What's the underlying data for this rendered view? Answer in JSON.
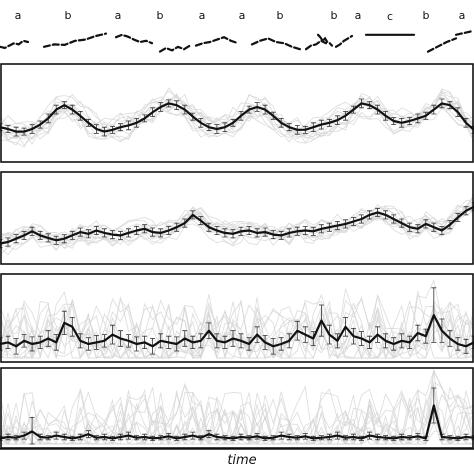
{
  "chart_data": [
    {
      "panel": "reference",
      "type": "line",
      "segment_labels": [
        "a",
        "b",
        "a",
        "b",
        "a",
        "a",
        "b",
        "b",
        "a",
        "c",
        "b",
        "a"
      ],
      "segments": [
        {
          "label": "a",
          "values": [
            0.3,
            0.25,
            0.35,
            0.45,
            0.4,
            0.55,
            0.5
          ]
        },
        {
          "label": "b",
          "values": [
            0.3,
            0.4,
            0.38,
            0.55,
            0.6,
            0.75,
            0.85
          ]
        },
        {
          "label": "a",
          "values": [
            0.7,
            0.8,
            0.72,
            0.6,
            0.5,
            0.55,
            0.45
          ]
        },
        {
          "label": "b",
          "values": [
            0.1,
            0.25,
            0.15,
            0.3,
            0.2,
            0.35
          ]
        },
        {
          "label": "a",
          "values": [
            0.35,
            0.45,
            0.5,
            0.6,
            0.7,
            0.55,
            0.45
          ]
        },
        {
          "label": "a",
          "values": [
            0.4,
            0.55,
            0.65,
            0.5,
            0.45,
            0.3,
            0.2
          ]
        },
        {
          "label": "b",
          "values": [
            0.2,
            0.35,
            0.4,
            0.55,
            0.45
          ]
        },
        {
          "label": "b",
          "values": [
            0.8,
            0.7,
            0.55,
            0.65,
            0.5,
            0.45,
            0.35
          ]
        },
        {
          "label": "a",
          "values": [
            0.3,
            0.4,
            0.55,
            0.65,
            0.75
          ]
        },
        {
          "label": "c",
          "values": [
            0.8,
            0.8
          ]
        },
        {
          "label": "b",
          "values": [
            0.1,
            0.3,
            0.5,
            0.65
          ]
        },
        {
          "label": "a",
          "values": [
            0.8,
            0.85,
            0.9,
            0.95
          ]
        }
      ]
    },
    {
      "panel": "series-1",
      "type": "line",
      "n": 60,
      "ylim": [
        0,
        1
      ],
      "mean": [
        0.35,
        0.33,
        0.3,
        0.3,
        0.33,
        0.38,
        0.45,
        0.55,
        0.6,
        0.55,
        0.48,
        0.4,
        0.33,
        0.3,
        0.32,
        0.35,
        0.37,
        0.4,
        0.45,
        0.52,
        0.58,
        0.62,
        0.6,
        0.55,
        0.47,
        0.4,
        0.35,
        0.33,
        0.35,
        0.4,
        0.48,
        0.55,
        0.58,
        0.55,
        0.48,
        0.4,
        0.35,
        0.32,
        0.32,
        0.35,
        0.38,
        0.4,
        0.43,
        0.48,
        0.55,
        0.62,
        0.6,
        0.55,
        0.48,
        0.42,
        0.4,
        0.42,
        0.45,
        0.48,
        0.55,
        0.62,
        0.6,
        0.52,
        0.4,
        0.32
      ],
      "err": [
        0.04,
        0.04,
        0.05,
        0.04,
        0.05,
        0.04,
        0.05,
        0.05,
        0.04,
        0.05,
        0.05,
        0.04,
        0.05,
        0.05,
        0.04,
        0.04,
        0.05,
        0.05,
        0.04,
        0.05,
        0.05,
        0.04,
        0.05,
        0.05,
        0.04,
        0.05,
        0.04,
        0.05,
        0.05,
        0.04,
        0.05,
        0.04,
        0.05,
        0.05,
        0.04,
        0.05,
        0.04,
        0.05,
        0.04,
        0.05,
        0.05,
        0.04,
        0.05,
        0.05,
        0.04,
        0.05,
        0.04,
        0.05,
        0.05,
        0.04,
        0.05,
        0.04,
        0.05,
        0.04,
        0.05,
        0.05,
        0.04,
        0.05,
        0.05,
        0.04
      ]
    },
    {
      "panel": "series-2",
      "type": "line",
      "n": 60,
      "ylim": [
        0,
        1
      ],
      "mean": [
        0.2,
        0.22,
        0.26,
        0.3,
        0.35,
        0.3,
        0.27,
        0.24,
        0.26,
        0.3,
        0.34,
        0.32,
        0.36,
        0.33,
        0.31,
        0.3,
        0.33,
        0.36,
        0.38,
        0.34,
        0.33,
        0.36,
        0.4,
        0.45,
        0.55,
        0.48,
        0.4,
        0.36,
        0.33,
        0.32,
        0.35,
        0.36,
        0.33,
        0.34,
        0.31,
        0.3,
        0.33,
        0.35,
        0.36,
        0.35,
        0.38,
        0.4,
        0.42,
        0.44,
        0.47,
        0.5,
        0.55,
        0.58,
        0.55,
        0.5,
        0.45,
        0.4,
        0.38,
        0.44,
        0.4,
        0.36,
        0.43,
        0.52,
        0.6,
        0.65
      ],
      "err": [
        0.05,
        0.05,
        0.05,
        0.05,
        0.05,
        0.05,
        0.05,
        0.05,
        0.05,
        0.05,
        0.05,
        0.05,
        0.05,
        0.05,
        0.05,
        0.05,
        0.05,
        0.05,
        0.05,
        0.05,
        0.05,
        0.05,
        0.05,
        0.05,
        0.05,
        0.05,
        0.05,
        0.05,
        0.05,
        0.05,
        0.05,
        0.05,
        0.05,
        0.05,
        0.05,
        0.05,
        0.05,
        0.05,
        0.05,
        0.05,
        0.05,
        0.05,
        0.05,
        0.05,
        0.05,
        0.05,
        0.05,
        0.05,
        0.05,
        0.05,
        0.05,
        0.05,
        0.05,
        0.05,
        0.05,
        0.05,
        0.05,
        0.05,
        0.05,
        0.05
      ]
    },
    {
      "panel": "series-3",
      "type": "line",
      "n": 60,
      "ylim": [
        0,
        1
      ],
      "mean": [
        0.18,
        0.2,
        0.15,
        0.22,
        0.18,
        0.2,
        0.25,
        0.2,
        0.45,
        0.4,
        0.22,
        0.18,
        0.2,
        0.22,
        0.3,
        0.25,
        0.22,
        0.18,
        0.2,
        0.15,
        0.22,
        0.2,
        0.18,
        0.25,
        0.2,
        0.22,
        0.35,
        0.22,
        0.2,
        0.25,
        0.22,
        0.18,
        0.3,
        0.2,
        0.15,
        0.18,
        0.22,
        0.35,
        0.3,
        0.25,
        0.48,
        0.3,
        0.22,
        0.4,
        0.28,
        0.25,
        0.2,
        0.3,
        0.22,
        0.18,
        0.22,
        0.2,
        0.32,
        0.28,
        0.55,
        0.35,
        0.25,
        0.18,
        0.15,
        0.2
      ],
      "err": [
        0.08,
        0.08,
        0.1,
        0.08,
        0.09,
        0.08,
        0.1,
        0.1,
        0.15,
        0.12,
        0.09,
        0.08,
        0.09,
        0.08,
        0.12,
        0.1,
        0.08,
        0.09,
        0.08,
        0.1,
        0.09,
        0.08,
        0.09,
        0.1,
        0.08,
        0.09,
        0.1,
        0.09,
        0.08,
        0.1,
        0.09,
        0.08,
        0.1,
        0.09,
        0.1,
        0.08,
        0.09,
        0.12,
        0.1,
        0.09,
        0.2,
        0.12,
        0.09,
        0.12,
        0.1,
        0.09,
        0.08,
        0.1,
        0.09,
        0.08,
        0.09,
        0.08,
        0.1,
        0.09,
        0.35,
        0.15,
        0.1,
        0.08,
        0.09,
        0.08
      ]
    },
    {
      "panel": "series-4",
      "type": "line",
      "n": 60,
      "ylim": [
        0,
        1
      ],
      "mean": [
        0.08,
        0.1,
        0.09,
        0.12,
        0.18,
        0.1,
        0.09,
        0.12,
        0.1,
        0.08,
        0.1,
        0.14,
        0.09,
        0.1,
        0.08,
        0.1,
        0.12,
        0.09,
        0.1,
        0.08,
        0.09,
        0.11,
        0.08,
        0.1,
        0.12,
        0.09,
        0.14,
        0.1,
        0.09,
        0.08,
        0.1,
        0.09,
        0.11,
        0.08,
        0.09,
        0.12,
        0.1,
        0.09,
        0.11,
        0.08,
        0.09,
        0.1,
        0.12,
        0.09,
        0.1,
        0.08,
        0.12,
        0.1,
        0.09,
        0.08,
        0.1,
        0.09,
        0.11,
        0.08,
        0.55,
        0.1,
        0.09,
        0.08,
        0.1,
        0.09
      ],
      "err": [
        0.03,
        0.04,
        0.03,
        0.05,
        0.2,
        0.04,
        0.03,
        0.05,
        0.04,
        0.03,
        0.04,
        0.05,
        0.03,
        0.04,
        0.03,
        0.04,
        0.05,
        0.03,
        0.04,
        0.03,
        0.03,
        0.04,
        0.03,
        0.04,
        0.05,
        0.03,
        0.05,
        0.04,
        0.03,
        0.03,
        0.04,
        0.03,
        0.04,
        0.03,
        0.03,
        0.05,
        0.04,
        0.03,
        0.04,
        0.03,
        0.03,
        0.04,
        0.05,
        0.03,
        0.04,
        0.03,
        0.05,
        0.04,
        0.03,
        0.03,
        0.04,
        0.03,
        0.04,
        0.03,
        0.25,
        0.04,
        0.03,
        0.03,
        0.04,
        0.03
      ]
    }
  ],
  "xlabel": "time"
}
